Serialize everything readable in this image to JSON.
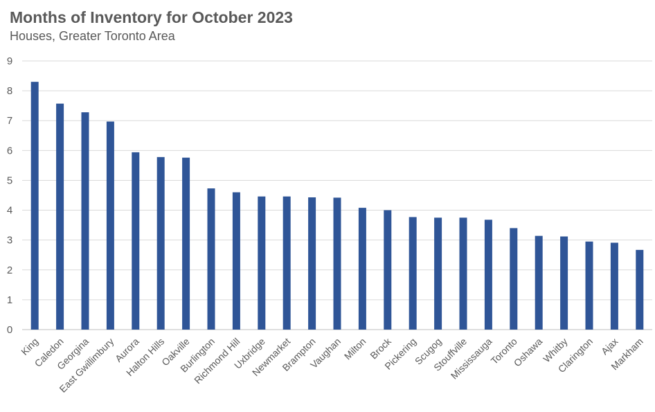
{
  "chart_data": {
    "type": "bar",
    "title": "Months of Inventory for October 2023",
    "subtitle": "Houses, Greater Toronto Area",
    "xlabel": "",
    "ylabel": "",
    "ylim": [
      0,
      9
    ],
    "yticks": [
      0,
      1,
      2,
      3,
      4,
      5,
      6,
      7,
      8,
      9
    ],
    "grid": true,
    "legend": "none",
    "bar_color": "#2f5597",
    "categories": [
      "King",
      "Caledon",
      "Georgina",
      "East Gwillimbury",
      "Aurora",
      "Halton Hills",
      "Oakville",
      "Burlington",
      "Richmond Hill",
      "Uxbridge",
      "Newmarket",
      "Brampton",
      "Vaughan",
      "Milton",
      "Brock",
      "Pickering",
      "Scugog",
      "Stouffville",
      "Mississauga",
      "Toronto",
      "Oshawa",
      "Whitby",
      "Clarington",
      "Ajax",
      "Markham"
    ],
    "values": [
      8.3,
      7.57,
      7.28,
      6.97,
      5.94,
      5.78,
      5.76,
      4.73,
      4.6,
      4.46,
      4.46,
      4.43,
      4.42,
      4.08,
      4.0,
      3.77,
      3.75,
      3.75,
      3.68,
      3.4,
      3.14,
      3.12,
      2.95,
      2.91,
      2.67
    ]
  }
}
